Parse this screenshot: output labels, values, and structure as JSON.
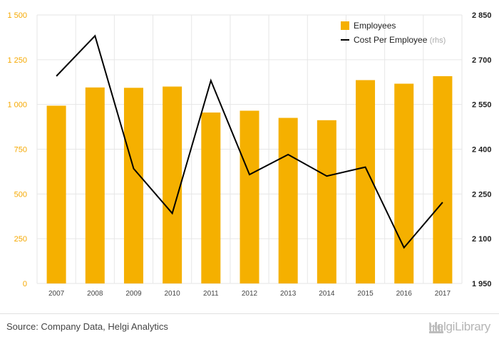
{
  "chart_data": {
    "type": "bar+line",
    "categories": [
      "2007",
      "2008",
      "2009",
      "2010",
      "2011",
      "2012",
      "2013",
      "2014",
      "2015",
      "2016",
      "2017"
    ],
    "series": [
      {
        "name": "Employees",
        "kind": "bar",
        "axis": "left",
        "color": "#f5b000",
        "values": [
          993,
          1095,
          1093,
          1100,
          955,
          965,
          925,
          912,
          1136,
          1116,
          1158
        ]
      },
      {
        "name": "Cost Per Employee",
        "name_suffix": "(rhs)",
        "kind": "line",
        "axis": "right",
        "color": "#000000",
        "values": [
          2645,
          2780,
          2335,
          2185,
          2630,
          2315,
          2382,
          2310,
          2340,
          2070,
          2222
        ]
      }
    ],
    "y_left": {
      "min": 0,
      "max": 1500,
      "ticks": [
        0,
        250,
        500,
        750,
        1000,
        1250,
        1500
      ],
      "tick_labels": [
        "0",
        "250",
        "500",
        "750",
        "1 000",
        "1 250",
        "1 500"
      ]
    },
    "y_right": {
      "min": 1950,
      "max": 2850,
      "ticks": [
        1950,
        2100,
        2250,
        2400,
        2550,
        2700,
        2850
      ],
      "tick_labels": [
        "1 950",
        "2 100",
        "2 250",
        "2 400",
        "2 550",
        "2 700",
        "2 850"
      ]
    },
    "grid": true,
    "legend_position": "top-right"
  },
  "footer": {
    "source": "Source: Company Data, Helgi Analytics",
    "brand": "HelgiLibrary",
    "brand_icon": "library-columns-icon"
  }
}
